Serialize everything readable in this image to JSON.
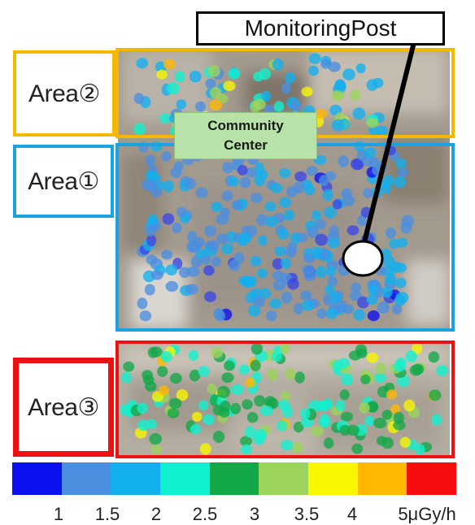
{
  "monitoring_post": {
    "label": "MonitoringPost"
  },
  "community_center": {
    "line1": "Community",
    "line2": "Center"
  },
  "areas": [
    {
      "id": "area-2",
      "label": "Area②",
      "color": "#f5b800"
    },
    {
      "id": "area-1",
      "label": "Area①",
      "color": "#1aa3e0"
    },
    {
      "id": "area-3",
      "label": "Area③",
      "color": "#ee1111"
    }
  ],
  "legend": {
    "colors": [
      "#0a10f0",
      "#4a8ee0",
      "#12b0ef",
      "#10f2cf",
      "#12a848",
      "#9cd35a",
      "#f8f600",
      "#ffb900",
      "#f60e0e"
    ],
    "ticks": [
      "1",
      "1.5",
      "2",
      "2.5",
      "3",
      "3.5",
      "4",
      "5μGy/h"
    ]
  }
}
